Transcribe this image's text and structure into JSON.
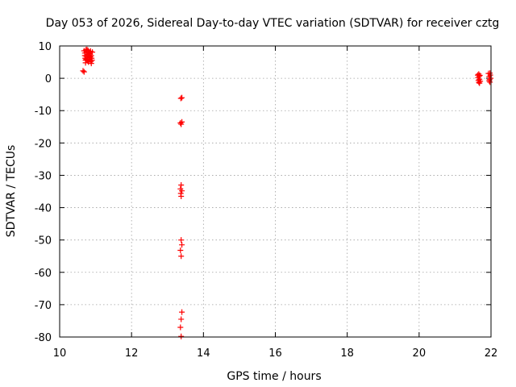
{
  "chart_data": {
    "type": "scatter",
    "title": "Day 053 of 2026, Sidereal Day-to-day VTEC variation (SDTVAR) for receiver cztg",
    "xlabel": "GPS time / hours",
    "ylabel": "SDTVAR / TECUs",
    "xlim": [
      10,
      22
    ],
    "ylim": [
      -80,
      10
    ],
    "xticks": [
      "10",
      "12",
      "14",
      "16",
      "18",
      "20",
      "22"
    ],
    "yticks": [
      "10",
      "0",
      "-10",
      "-20",
      "-30",
      "-40",
      "-50",
      "-60",
      "-70",
      "-80"
    ],
    "grid": true,
    "marker": "plus",
    "color": "#ff0000",
    "points": [
      [
        10.65,
        2.3
      ],
      [
        10.68,
        2.0
      ],
      [
        10.68,
        8.5
      ],
      [
        10.7,
        7.8
      ],
      [
        10.7,
        7.0
      ],
      [
        10.71,
        6.2
      ],
      [
        10.72,
        5.6
      ],
      [
        10.73,
        8.8
      ],
      [
        10.74,
        6.8
      ],
      [
        10.75,
        8.2
      ],
      [
        10.76,
        7.4
      ],
      [
        10.77,
        6.0
      ],
      [
        10.78,
        5.4
      ],
      [
        10.79,
        8.6
      ],
      [
        10.8,
        7.2
      ],
      [
        10.81,
        6.4
      ],
      [
        10.82,
        8.0
      ],
      [
        10.83,
        5.8
      ],
      [
        10.84,
        7.6
      ],
      [
        10.85,
        6.6
      ],
      [
        10.86,
        8.4
      ],
      [
        10.87,
        5.2
      ],
      [
        10.88,
        7.0
      ],
      [
        10.89,
        6.2
      ],
      [
        10.9,
        5.6
      ],
      [
        10.91,
        8.1
      ],
      [
        10.72,
        4.8
      ],
      [
        10.8,
        5.0
      ],
      [
        10.88,
        4.6
      ],
      [
        10.76,
        8.9
      ],
      [
        10.84,
        6.9
      ],
      [
        10.74,
        5.9
      ],
      [
        13.37,
        -6.2
      ],
      [
        13.4,
        -6.0
      ],
      [
        13.36,
        -13.8
      ],
      [
        13.38,
        -14.2
      ],
      [
        13.4,
        -13.5
      ],
      [
        13.38,
        -33.0
      ],
      [
        13.36,
        -34.2
      ],
      [
        13.4,
        -34.8
      ],
      [
        13.37,
        -35.6
      ],
      [
        13.38,
        -36.5
      ],
      [
        13.38,
        -50.0
      ],
      [
        13.4,
        -51.5
      ],
      [
        13.36,
        -53.2
      ],
      [
        13.38,
        -55.0
      ],
      [
        13.4,
        -72.3
      ],
      [
        13.38,
        -74.5
      ],
      [
        13.36,
        -77.0
      ],
      [
        13.38,
        -79.8
      ],
      [
        21.63,
        1.0
      ],
      [
        21.64,
        0.2
      ],
      [
        21.65,
        -0.6
      ],
      [
        21.66,
        -1.2
      ],
      [
        21.67,
        0.6
      ],
      [
        21.68,
        -0.3
      ],
      [
        21.69,
        0.9
      ],
      [
        21.7,
        -0.9
      ],
      [
        21.66,
        1.3
      ],
      [
        21.68,
        -1.5
      ],
      [
        21.93,
        1.5
      ],
      [
        21.95,
        0.5
      ],
      [
        21.96,
        -0.4
      ],
      [
        21.97,
        -1.2
      ],
      [
        21.98,
        1.0
      ],
      [
        21.99,
        0.0
      ],
      [
        21.95,
        -0.8
      ],
      [
        21.97,
        1.6
      ]
    ]
  }
}
